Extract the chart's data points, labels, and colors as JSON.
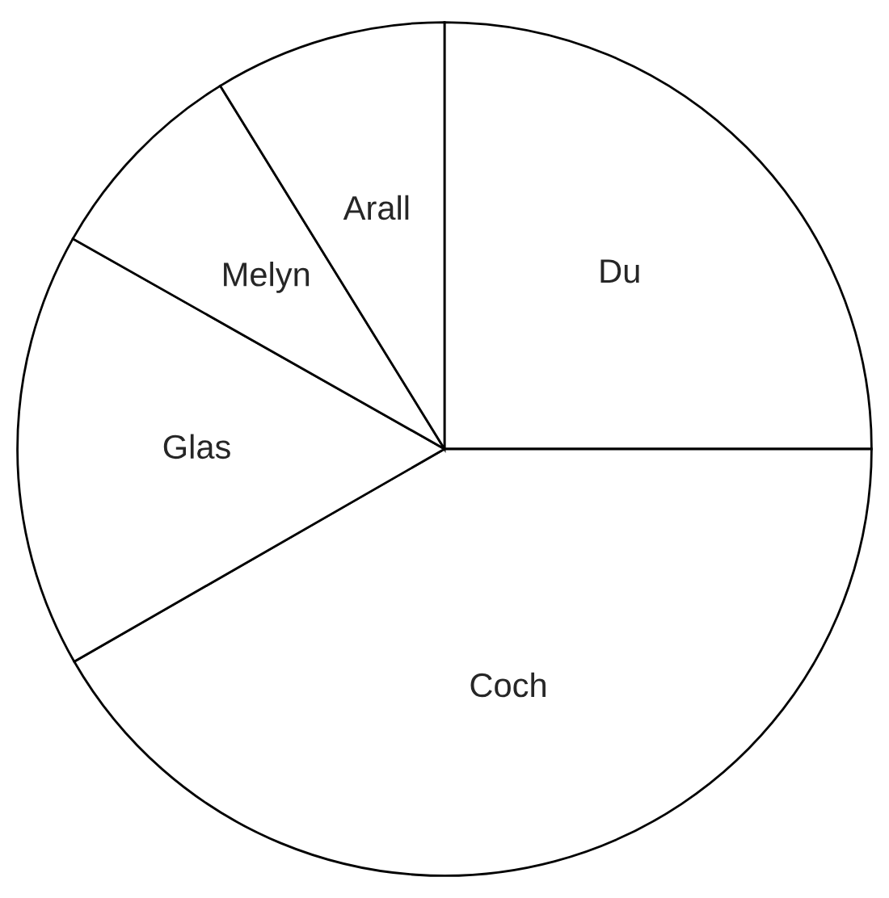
{
  "chart_data": {
    "type": "pie",
    "categories": [
      "Du",
      "Coch",
      "Glas",
      "Melyn",
      "Arall"
    ],
    "values": [
      25,
      41.7,
      16.5,
      8,
      8.8
    ],
    "colors": [
      "#ffffff",
      "#ffffff",
      "#ffffff",
      "#ffffff",
      "#ffffff"
    ]
  }
}
